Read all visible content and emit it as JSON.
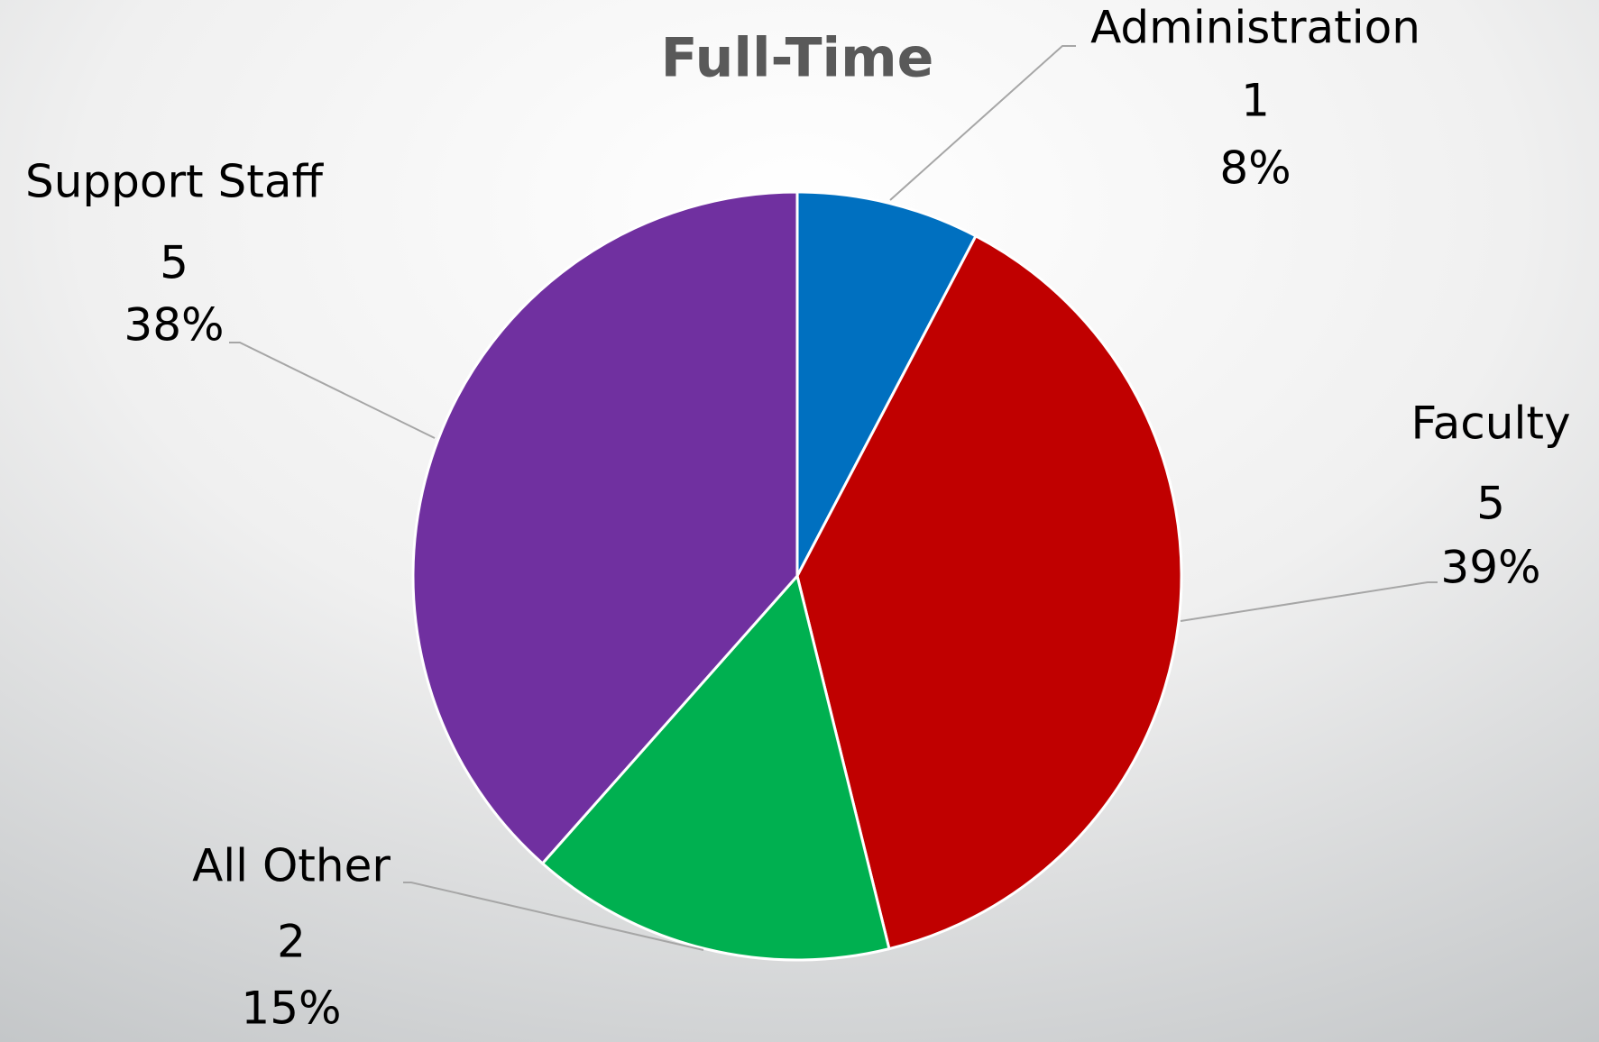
{
  "chart_data": {
    "type": "pie",
    "title": "Full-Time",
    "categories": [
      "Administration",
      "Faculty",
      "All Other",
      "Support Staff"
    ],
    "values": [
      1,
      5,
      2,
      5
    ],
    "percent_labels": [
      "8%",
      "39%",
      "15%",
      "38%"
    ],
    "colors": [
      "#0070c0",
      "#c00000",
      "#00b050",
      "#7030a0"
    ]
  }
}
